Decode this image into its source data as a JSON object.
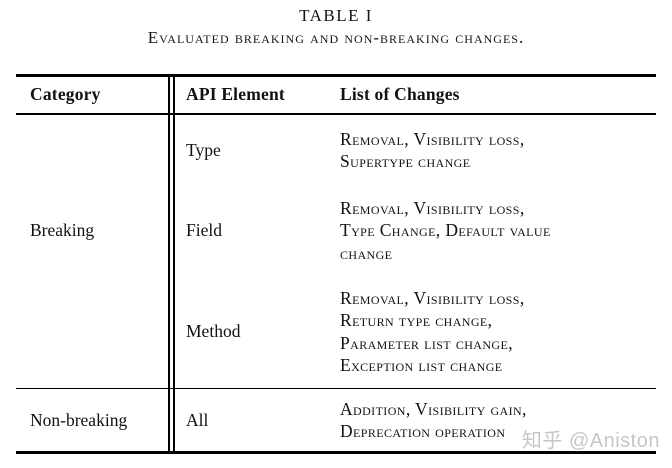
{
  "caption": {
    "title": "TABLE I",
    "subtitle": "Evaluated breaking and non-breaking changes."
  },
  "header": {
    "category": "Category",
    "api_element": "API Element",
    "changes": "List of Changes"
  },
  "sections": [
    {
      "category": "Breaking",
      "rows": [
        {
          "element": "Type",
          "changes_lines": [
            "Removal, Visibility loss,",
            "Supertype change"
          ]
        },
        {
          "element": "Field",
          "changes_lines": [
            "Removal, Visibility loss,",
            "Type Change, Default value",
            "change"
          ]
        },
        {
          "element": "Method",
          "changes_lines": [
            "Removal, Visibility loss,",
            "Return type change,",
            "Parameter list change,",
            "Exception list change"
          ]
        }
      ]
    },
    {
      "category": "Non-breaking",
      "rows": [
        {
          "element": "All",
          "changes_lines": [
            "Addition, Visibility gain,",
            "Deprecation operation"
          ]
        }
      ]
    }
  ],
  "watermark": {
    "text": "知乎 @Aniston",
    "color": "#c6c6c6"
  },
  "colors": {
    "background": "#ffffff",
    "text": "#111111",
    "rule": "#000000"
  }
}
